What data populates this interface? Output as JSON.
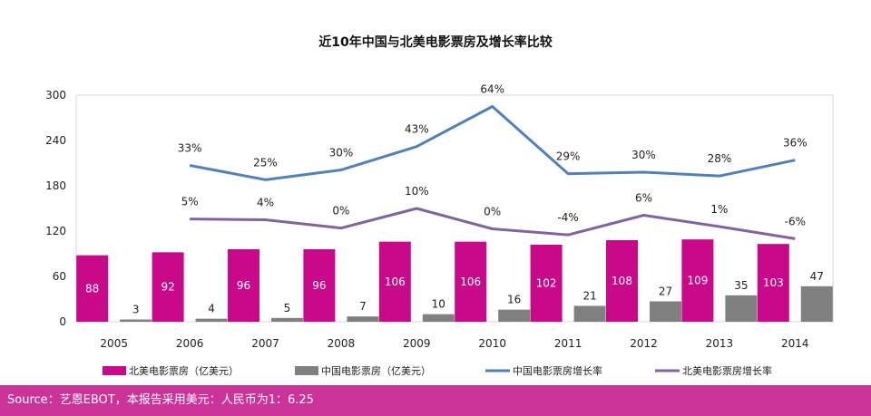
{
  "chart_data": {
    "type": "bar+line",
    "title": "近10年中国与北美电影票房及增长率比较",
    "categories": [
      "2005",
      "2006",
      "2007",
      "2008",
      "2009",
      "2010",
      "2011",
      "2012",
      "2013",
      "2014"
    ],
    "ylim": [
      0,
      300
    ],
    "yticks": [
      "0",
      "60",
      "120",
      "180",
      "240",
      "300"
    ],
    "bars": [
      {
        "name": "北美电影票房（亿美元）",
        "color": "#c7098a",
        "label_color": "#ffffff",
        "values": [
          88,
          92,
          96,
          96,
          106,
          106,
          102,
          108,
          109,
          103
        ],
        "labels": [
          "88",
          "92",
          "96",
          "96",
          "106",
          "106",
          "102",
          "108",
          "109",
          "103"
        ]
      },
      {
        "name": "中国电影票房（亿美元）",
        "color": "#808080",
        "label_color": "#222222",
        "values": [
          3,
          4,
          5,
          7,
          10,
          16,
          21,
          27,
          35,
          47
        ],
        "labels": [
          "3",
          "4",
          "5",
          "7",
          "10",
          "16",
          "21",
          "27",
          "35",
          "47"
        ]
      }
    ],
    "lines": [
      {
        "name": "中国电影票房增长率",
        "color": "#4f81bd",
        "growth_pct": [
          null,
          33,
          25,
          30,
          43,
          64,
          29,
          30,
          28,
          36
        ],
        "plot_y": [
          null,
          207,
          188,
          201,
          232,
          285,
          196,
          198,
          193,
          214
        ],
        "labels": [
          "",
          "33%",
          "25%",
          "30%",
          "43%",
          "64%",
          "29%",
          "30%",
          "28%",
          "36%"
        ]
      },
      {
        "name": "北美电影票房增长率",
        "color": "#8064a2",
        "growth_pct": [
          null,
          5,
          4,
          0,
          10,
          0,
          -4,
          6,
          1,
          -6
        ],
        "plot_y": [
          null,
          136,
          135,
          124,
          150,
          123,
          115,
          141,
          126,
          110
        ],
        "labels": [
          "",
          "5%",
          "4%",
          "0%",
          "10%",
          "0%",
          "-4%",
          "6%",
          "1%",
          "-6%"
        ]
      }
    ]
  },
  "footer": {
    "source_text": "Source：艺恩EBOT，本报告采用美元：人民币为1：6.25",
    "background": "#cc3399"
  }
}
